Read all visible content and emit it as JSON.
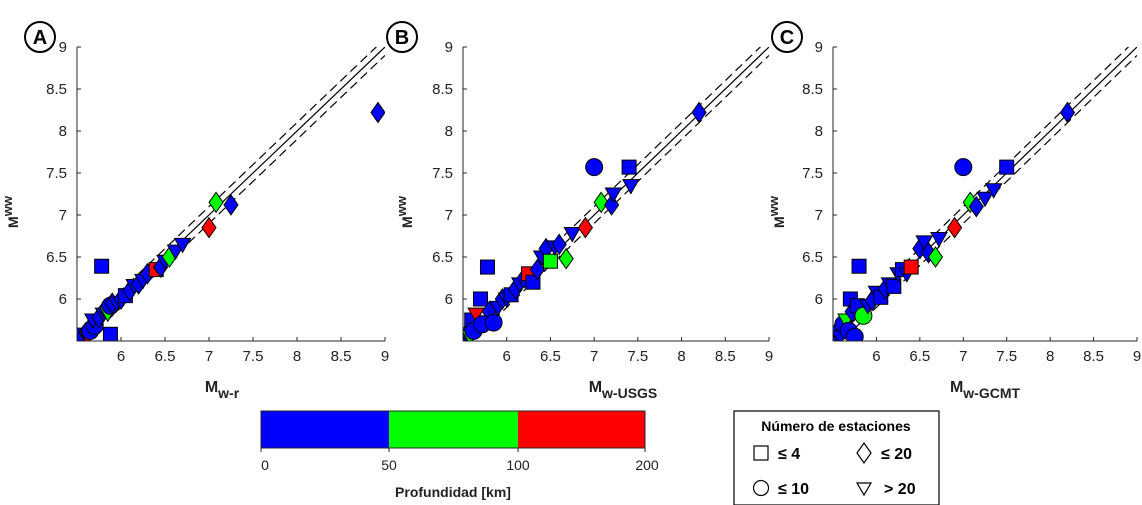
{
  "chart_data": [
    {
      "panel": "A",
      "type": "scatter",
      "xlabel_main": "M",
      "xlabel_sub": "w-r",
      "ylabel_main": "M",
      "ylabel_sub": "ww",
      "xlim": [
        5.5,
        9
      ],
      "ylim": [
        5.5,
        9
      ],
      "xticks": [
        "6",
        "6.5",
        "7",
        "7.5",
        "8",
        "8.5",
        "9"
      ],
      "yticks": [
        "6",
        "6.5",
        "7",
        "7.5",
        "8",
        "8.5",
        "9"
      ],
      "reference_lines": {
        "one_to_one": true,
        "dashed_offset": 0.1
      },
      "points": [
        {
          "x": 5.55,
          "y": 5.57,
          "shape": "square",
          "color": "blue"
        },
        {
          "x": 5.6,
          "y": 5.6,
          "shape": "diamond",
          "color": "blue"
        },
        {
          "x": 5.62,
          "y": 5.55,
          "shape": "triangle",
          "color": "red"
        },
        {
          "x": 5.65,
          "y": 5.62,
          "shape": "circle",
          "color": "blue"
        },
        {
          "x": 5.7,
          "y": 5.68,
          "shape": "circle",
          "color": "blue"
        },
        {
          "x": 5.68,
          "y": 5.75,
          "shape": "triangle",
          "color": "blue"
        },
        {
          "x": 5.75,
          "y": 5.78,
          "shape": "diamond",
          "color": "blue"
        },
        {
          "x": 5.78,
          "y": 6.39,
          "shape": "square",
          "color": "blue"
        },
        {
          "x": 5.8,
          "y": 5.82,
          "shape": "triangle",
          "color": "blue"
        },
        {
          "x": 5.82,
          "y": 5.88,
          "shape": "diamond",
          "color": "blue"
        },
        {
          "x": 5.85,
          "y": 5.83,
          "shape": "triangle",
          "color": "green"
        },
        {
          "x": 5.88,
          "y": 5.58,
          "shape": "square",
          "color": "blue"
        },
        {
          "x": 5.88,
          "y": 5.92,
          "shape": "circle",
          "color": "blue"
        },
        {
          "x": 5.9,
          "y": 5.95,
          "shape": "diamond",
          "color": "blue"
        },
        {
          "x": 5.95,
          "y": 5.95,
          "shape": "triangle",
          "color": "blue"
        },
        {
          "x": 6.0,
          "y": 6.0,
          "shape": "diamond",
          "color": "blue"
        },
        {
          "x": 6.05,
          "y": 6.04,
          "shape": "square",
          "color": "blue"
        },
        {
          "x": 6.1,
          "y": 6.1,
          "shape": "diamond",
          "color": "blue"
        },
        {
          "x": 6.15,
          "y": 6.16,
          "shape": "triangle",
          "color": "blue"
        },
        {
          "x": 6.2,
          "y": 6.18,
          "shape": "diamond",
          "color": "blue"
        },
        {
          "x": 6.25,
          "y": 6.22,
          "shape": "triangle",
          "color": "blue"
        },
        {
          "x": 6.3,
          "y": 6.3,
          "shape": "diamond",
          "color": "blue"
        },
        {
          "x": 6.4,
          "y": 6.35,
          "shape": "square",
          "color": "red"
        },
        {
          "x": 6.45,
          "y": 6.38,
          "shape": "diamond",
          "color": "blue"
        },
        {
          "x": 6.5,
          "y": 6.45,
          "shape": "triangle",
          "color": "blue"
        },
        {
          "x": 6.55,
          "y": 6.5,
          "shape": "diamond",
          "color": "green"
        },
        {
          "x": 6.62,
          "y": 6.57,
          "shape": "triangle",
          "color": "blue"
        },
        {
          "x": 6.7,
          "y": 6.65,
          "shape": "triangle",
          "color": "blue"
        },
        {
          "x": 7.0,
          "y": 6.85,
          "shape": "diamond",
          "color": "red"
        },
        {
          "x": 7.08,
          "y": 7.15,
          "shape": "diamond",
          "color": "green"
        },
        {
          "x": 7.25,
          "y": 7.12,
          "shape": "diamond",
          "color": "blue"
        },
        {
          "x": 8.92,
          "y": 8.22,
          "shape": "diamond",
          "color": "blue"
        }
      ]
    },
    {
      "panel": "B",
      "type": "scatter",
      "xlabel_main": "M",
      "xlabel_sub": "w-USGS",
      "ylabel_main": "M",
      "ylabel_sub": "ww",
      "xlim": [
        5.5,
        9
      ],
      "ylim": [
        5.5,
        9
      ],
      "xticks": [
        "6",
        "6.5",
        "7",
        "7.5",
        "8",
        "8.5",
        "9"
      ],
      "yticks": [
        "6",
        "6.5",
        "7",
        "7.5",
        "8",
        "8.5",
        "9"
      ],
      "reference_lines": {
        "one_to_one": true,
        "dashed_offset": 0.1
      },
      "points": [
        {
          "x": 5.52,
          "y": 5.55,
          "shape": "circle",
          "color": "blue"
        },
        {
          "x": 5.55,
          "y": 5.6,
          "shape": "diamond",
          "color": "blue"
        },
        {
          "x": 5.58,
          "y": 5.55,
          "shape": "triangle",
          "color": "green"
        },
        {
          "x": 5.6,
          "y": 5.75,
          "shape": "square",
          "color": "blue"
        },
        {
          "x": 5.62,
          "y": 5.62,
          "shape": "circle",
          "color": "blue"
        },
        {
          "x": 5.65,
          "y": 5.82,
          "shape": "triangle",
          "color": "red"
        },
        {
          "x": 5.7,
          "y": 6.0,
          "shape": "square",
          "color": "blue"
        },
        {
          "x": 5.72,
          "y": 5.7,
          "shape": "circle",
          "color": "blue"
        },
        {
          "x": 5.78,
          "y": 6.38,
          "shape": "square",
          "color": "blue"
        },
        {
          "x": 5.8,
          "y": 5.85,
          "shape": "diamond",
          "color": "blue"
        },
        {
          "x": 5.85,
          "y": 5.72,
          "shape": "circle",
          "color": "blue"
        },
        {
          "x": 5.9,
          "y": 5.9,
          "shape": "triangle",
          "color": "blue"
        },
        {
          "x": 5.95,
          "y": 6.0,
          "shape": "diamond",
          "color": "blue"
        },
        {
          "x": 6.0,
          "y": 6.0,
          "shape": "triangle",
          "color": "blue"
        },
        {
          "x": 6.05,
          "y": 6.05,
          "shape": "square",
          "color": "blue"
        },
        {
          "x": 6.1,
          "y": 6.12,
          "shape": "diamond",
          "color": "blue"
        },
        {
          "x": 6.15,
          "y": 6.18,
          "shape": "triangle",
          "color": "blue"
        },
        {
          "x": 6.2,
          "y": 6.25,
          "shape": "diamond",
          "color": "blue"
        },
        {
          "x": 6.25,
          "y": 6.3,
          "shape": "square",
          "color": "red"
        },
        {
          "x": 6.3,
          "y": 6.2,
          "shape": "square",
          "color": "blue"
        },
        {
          "x": 6.35,
          "y": 6.35,
          "shape": "diamond",
          "color": "blue"
        },
        {
          "x": 6.4,
          "y": 6.5,
          "shape": "triangle",
          "color": "blue"
        },
        {
          "x": 6.45,
          "y": 6.6,
          "shape": "diamond",
          "color": "blue"
        },
        {
          "x": 6.5,
          "y": 6.45,
          "shape": "square",
          "color": "green"
        },
        {
          "x": 6.55,
          "y": 6.62,
          "shape": "triangle",
          "color": "blue"
        },
        {
          "x": 6.6,
          "y": 6.65,
          "shape": "diamond",
          "color": "blue"
        },
        {
          "x": 6.68,
          "y": 6.48,
          "shape": "diamond",
          "color": "green"
        },
        {
          "x": 6.75,
          "y": 6.78,
          "shape": "triangle",
          "color": "blue"
        },
        {
          "x": 6.9,
          "y": 6.85,
          "shape": "diamond",
          "color": "red"
        },
        {
          "x": 7.0,
          "y": 7.57,
          "shape": "circle",
          "color": "blue"
        },
        {
          "x": 7.08,
          "y": 7.15,
          "shape": "diamond",
          "color": "green"
        },
        {
          "x": 7.2,
          "y": 7.12,
          "shape": "diamond",
          "color": "blue"
        },
        {
          "x": 7.22,
          "y": 7.25,
          "shape": "triangle",
          "color": "blue"
        },
        {
          "x": 7.4,
          "y": 7.57,
          "shape": "square",
          "color": "blue"
        },
        {
          "x": 7.42,
          "y": 7.35,
          "shape": "triangle",
          "color": "blue"
        },
        {
          "x": 8.2,
          "y": 8.22,
          "shape": "diamond",
          "color": "blue"
        }
      ]
    },
    {
      "panel": "C",
      "type": "scatter",
      "xlabel_main": "M",
      "xlabel_sub": "w-GCMT",
      "ylabel_main": "M",
      "ylabel_sub": "ww",
      "xlim": [
        5.5,
        9
      ],
      "ylim": [
        5.5,
        9
      ],
      "xticks": [
        "6",
        "6.5",
        "7",
        "7.5",
        "8",
        "8.5",
        "9"
      ],
      "yticks": [
        "6",
        "6.5",
        "7",
        "7.5",
        "8",
        "8.5",
        "9"
      ],
      "reference_lines": {
        "one_to_one": true,
        "dashed_offset": 0.1
      },
      "points": [
        {
          "x": 5.52,
          "y": 5.58,
          "shape": "circle",
          "color": "blue"
        },
        {
          "x": 5.55,
          "y": 5.62,
          "shape": "diamond",
          "color": "blue"
        },
        {
          "x": 5.58,
          "y": 5.55,
          "shape": "triangle",
          "color": "blue"
        },
        {
          "x": 5.62,
          "y": 5.7,
          "shape": "circle",
          "color": "blue"
        },
        {
          "x": 5.65,
          "y": 5.75,
          "shape": "triangle",
          "color": "green"
        },
        {
          "x": 5.68,
          "y": 5.62,
          "shape": "circle",
          "color": "blue"
        },
        {
          "x": 5.7,
          "y": 6.0,
          "shape": "square",
          "color": "blue"
        },
        {
          "x": 5.72,
          "y": 5.85,
          "shape": "diamond",
          "color": "blue"
        },
        {
          "x": 5.75,
          "y": 5.55,
          "shape": "circle",
          "color": "blue"
        },
        {
          "x": 5.78,
          "y": 5.92,
          "shape": "square",
          "color": "blue"
        },
        {
          "x": 5.8,
          "y": 6.39,
          "shape": "square",
          "color": "blue"
        },
        {
          "x": 5.85,
          "y": 5.8,
          "shape": "circle",
          "color": "green"
        },
        {
          "x": 5.9,
          "y": 5.92,
          "shape": "triangle",
          "color": "blue"
        },
        {
          "x": 5.95,
          "y": 5.98,
          "shape": "diamond",
          "color": "blue"
        },
        {
          "x": 6.0,
          "y": 6.08,
          "shape": "triangle",
          "color": "blue"
        },
        {
          "x": 6.05,
          "y": 6.02,
          "shape": "square",
          "color": "blue"
        },
        {
          "x": 6.1,
          "y": 6.12,
          "shape": "diamond",
          "color": "blue"
        },
        {
          "x": 6.15,
          "y": 6.18,
          "shape": "triangle",
          "color": "blue"
        },
        {
          "x": 6.2,
          "y": 6.15,
          "shape": "square",
          "color": "blue"
        },
        {
          "x": 6.25,
          "y": 6.3,
          "shape": "triangle",
          "color": "blue"
        },
        {
          "x": 6.3,
          "y": 6.35,
          "shape": "square",
          "color": "blue"
        },
        {
          "x": 6.35,
          "y": 6.3,
          "shape": "triangle",
          "color": "blue"
        },
        {
          "x": 6.4,
          "y": 6.38,
          "shape": "square",
          "color": "red"
        },
        {
          "x": 6.5,
          "y": 6.6,
          "shape": "diamond",
          "color": "blue"
        },
        {
          "x": 6.55,
          "y": 6.68,
          "shape": "triangle",
          "color": "blue"
        },
        {
          "x": 6.6,
          "y": 6.55,
          "shape": "diamond",
          "color": "blue"
        },
        {
          "x": 6.68,
          "y": 6.5,
          "shape": "diamond",
          "color": "green"
        },
        {
          "x": 6.72,
          "y": 6.72,
          "shape": "triangle",
          "color": "blue"
        },
        {
          "x": 6.9,
          "y": 6.85,
          "shape": "diamond",
          "color": "red"
        },
        {
          "x": 7.0,
          "y": 7.57,
          "shape": "circle",
          "color": "blue"
        },
        {
          "x": 7.08,
          "y": 7.15,
          "shape": "diamond",
          "color": "green"
        },
        {
          "x": 7.15,
          "y": 7.1,
          "shape": "diamond",
          "color": "blue"
        },
        {
          "x": 7.25,
          "y": 7.2,
          "shape": "triangle",
          "color": "blue"
        },
        {
          "x": 7.35,
          "y": 7.3,
          "shape": "triangle",
          "color": "blue"
        },
        {
          "x": 7.5,
          "y": 7.57,
          "shape": "square",
          "color": "blue"
        },
        {
          "x": 8.2,
          "y": 8.22,
          "shape": "diamond",
          "color": "blue"
        }
      ]
    }
  ],
  "colors": {
    "blue": "#0000ff",
    "green": "#00ff00",
    "red": "#ff0000",
    "axis": "#262626",
    "edge": "#000000"
  },
  "colorbar": {
    "title": "Profundidad [km]",
    "ticks": [
      "0",
      "50",
      "100",
      "200"
    ],
    "segments": [
      {
        "from": 0,
        "to": 50,
        "color": "blue"
      },
      {
        "from": 50,
        "to": 100,
        "color": "green"
      },
      {
        "from": 100,
        "to": 200,
        "color": "red"
      }
    ]
  },
  "legend": {
    "title": "Número de estaciones",
    "items": [
      {
        "shape": "square",
        "symbol": "≤",
        "label": "4"
      },
      {
        "shape": "diamond",
        "symbol": "≤",
        "label": "20"
      },
      {
        "shape": "circle",
        "symbol": "≤",
        "label": "10"
      },
      {
        "shape": "triangle",
        "symbol": "",
        "label": "> 20"
      }
    ]
  }
}
